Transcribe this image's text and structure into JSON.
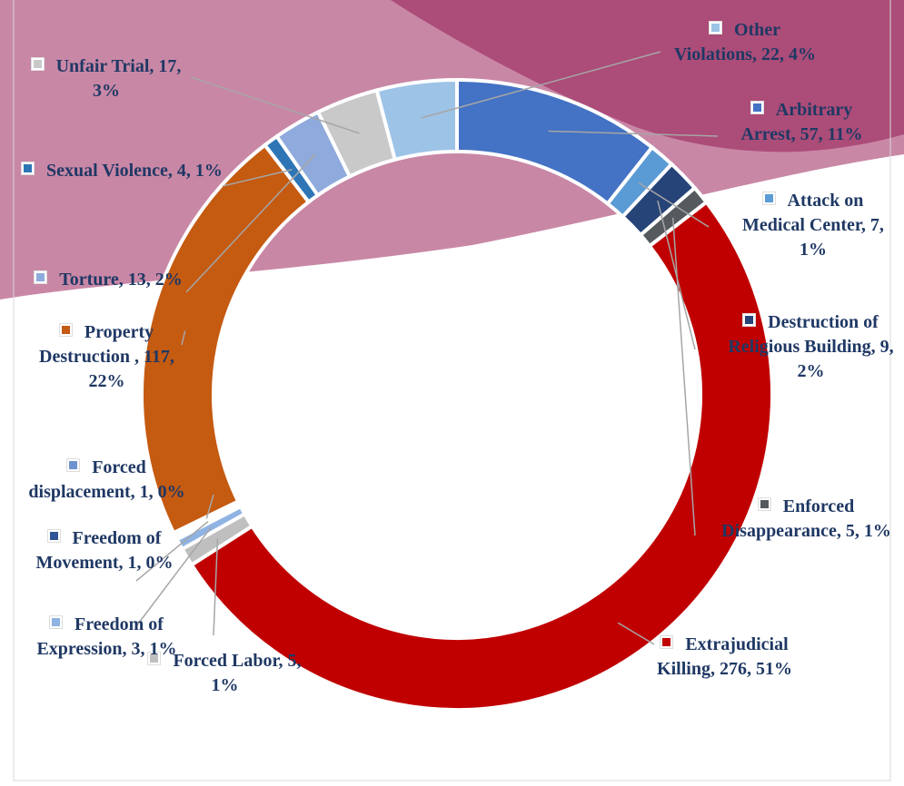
{
  "chart_data": {
    "type": "donut",
    "values": [
      57,
      7,
      9,
      5,
      276,
      5,
      3,
      1,
      1,
      117,
      4,
      13,
      17,
      22
    ],
    "value_labels": [
      "Arbitrary Arrest, 57, 11%",
      "Attack on Medical Center, 7, 1%",
      "Destruction of Religious Building, 9, 2%",
      "Enforced Disappearance, 5, 1%",
      "Extrajudicial Killing, 276, 51%",
      "Forced Labor, 5, 1%",
      "Freedom of Expression, 3, 1%",
      "Freedom of Movement, 1, 0%",
      "Forced displacement, 1, 0%",
      "Property Destruction , 117, 22%",
      "Sexual Violence, 4, 1%",
      "Torture, 13, 2%",
      "Unfair Trial, 17, 3%",
      "Other Violations, 22, 4%"
    ],
    "colors": [
      "#4472c4",
      "#5b9bd5",
      "#264478",
      "#555a5f",
      "#c00000",
      "#bfbfbf",
      "#8fb4e3",
      "#2f5597",
      "#6f93cf",
      "#c55a11",
      "#2e75b6",
      "#8faadc",
      "#c9c9c9",
      "#9dc3e6"
    ]
  }
}
